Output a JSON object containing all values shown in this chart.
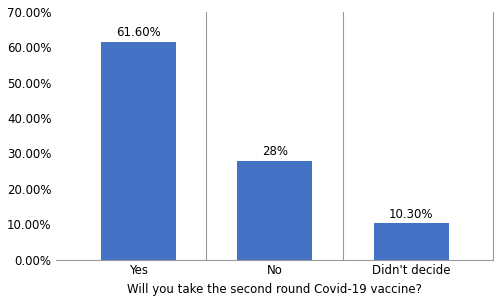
{
  "categories": [
    "Yes",
    "No",
    "Didn't decide"
  ],
  "values": [
    61.6,
    28.0,
    10.3
  ],
  "bar_labels": [
    "61.60%",
    "28%",
    "10.30%"
  ],
  "bar_color": "#4472C4",
  "xlabel": "Will you take the second round Covid-19 vaccine?",
  "ylim": [
    0,
    70
  ],
  "yticks": [
    0,
    10,
    20,
    30,
    40,
    50,
    60,
    70
  ],
  "ytick_labels": [
    "0.00%",
    "10.00%",
    "20.00%",
    "30.00%",
    "40.00%",
    "50.00%",
    "60.00%",
    "70.00%"
  ],
  "bar_width": 0.55,
  "label_fontsize": 8.5,
  "xlabel_fontsize": 8.5,
  "tick_fontsize": 8.5,
  "background_color": "#ffffff",
  "spine_color": "#999999"
}
